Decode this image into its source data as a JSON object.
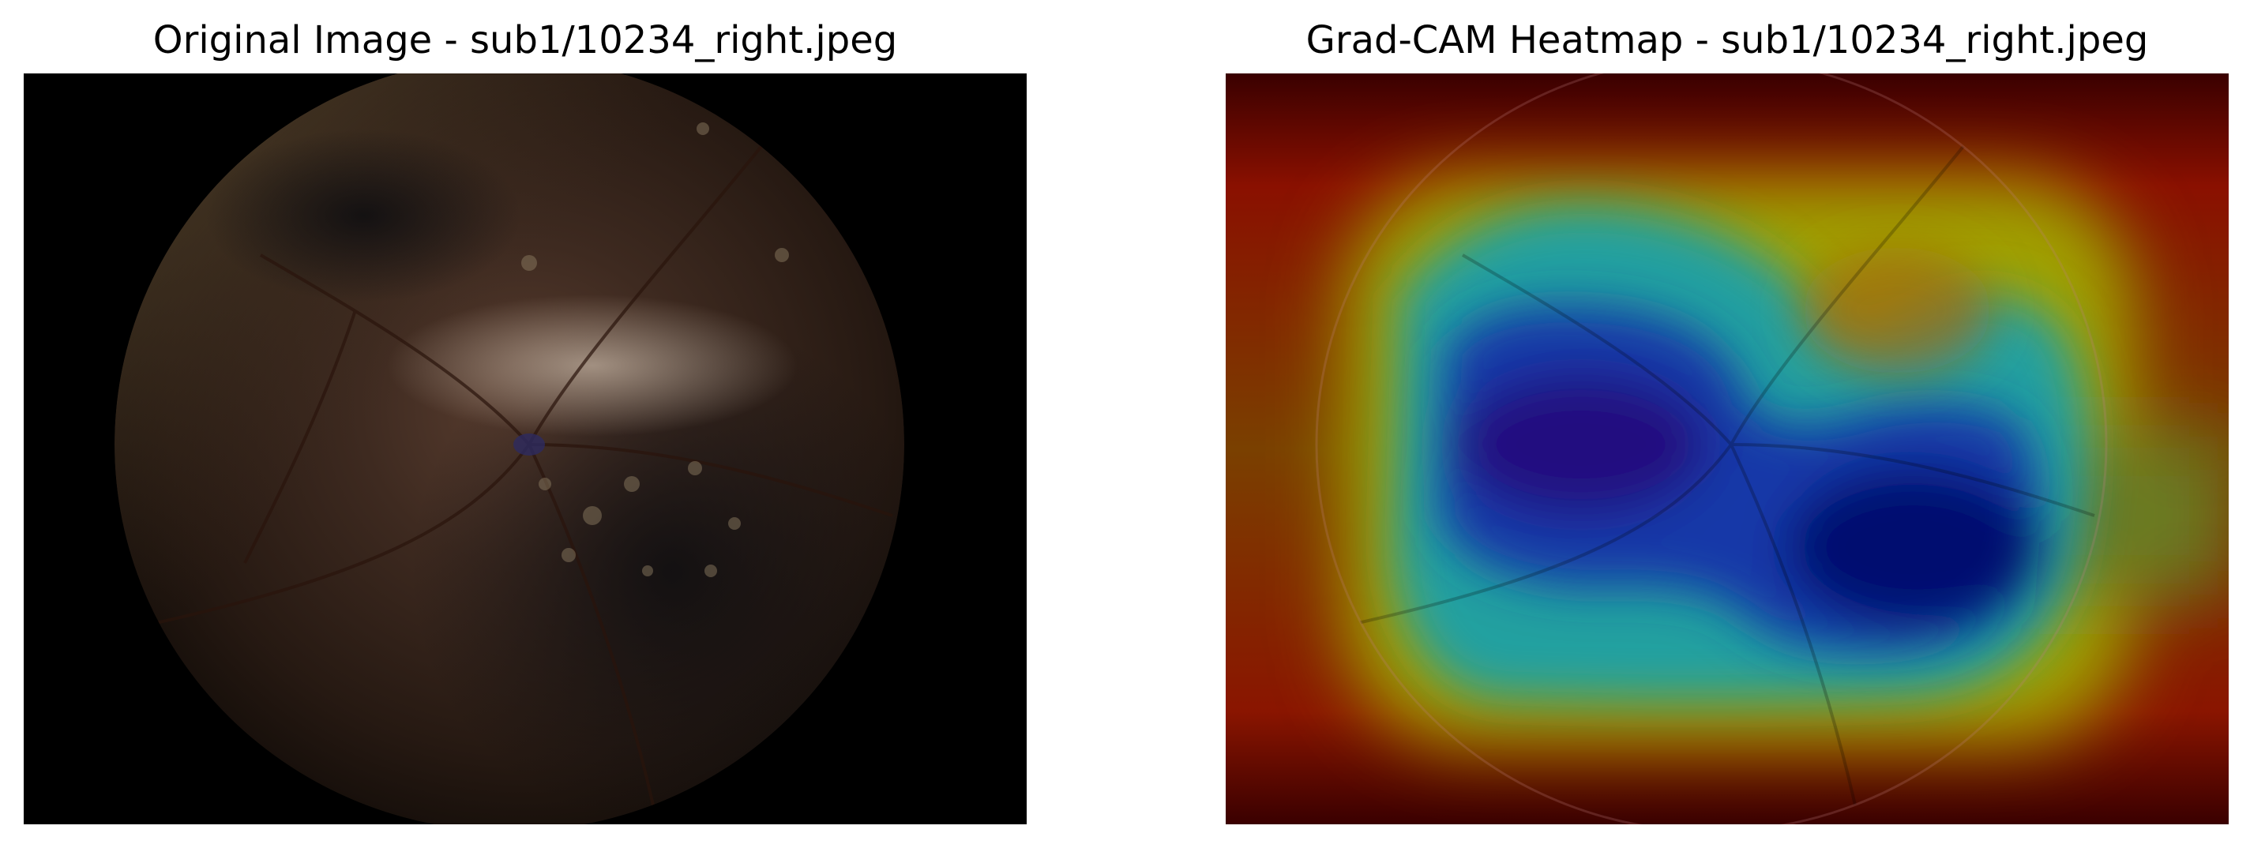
{
  "panels": [
    {
      "title": "Original Image - sub1/10234_right.jpeg",
      "image": "fundus-photograph"
    },
    {
      "title": "Grad-CAM Heatmap - sub1/10234_right.jpeg",
      "image": "grad-cam-heatmap-overlay-on-fundus"
    }
  ],
  "colors": {
    "background": "#ffffff",
    "fundus_outside": "#000000",
    "heatmap_low": "#000080",
    "heatmap_mid": "#00a0a0",
    "heatmap_high": "#b00000"
  }
}
